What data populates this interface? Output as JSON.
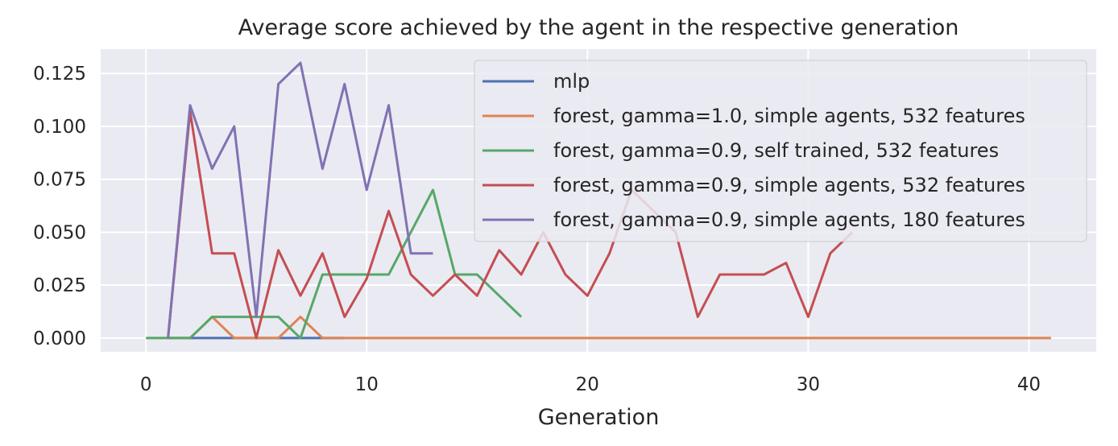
{
  "chart_data": {
    "type": "line",
    "title": "Average score achieved by the agent in the respective generation",
    "xlabel": "Generation",
    "ylabel": "",
    "xlim": [
      -2.05,
      43.05
    ],
    "ylim": [
      -0.0065,
      0.1365
    ],
    "xticks": [
      0,
      10,
      20,
      30,
      40
    ],
    "yticks": [
      0.0,
      0.025,
      0.05,
      0.075,
      0.1,
      0.125
    ],
    "xtick_labels": [
      "0",
      "10",
      "20",
      "30",
      "40"
    ],
    "ytick_labels": [
      "0.000",
      "0.025",
      "0.050",
      "0.075",
      "0.100",
      "0.125"
    ],
    "grid": true,
    "legend_position": "upper right",
    "background_color": "#eaeaf2",
    "series": [
      {
        "name": "mlp",
        "color": "#4c72b0",
        "x": [
          1,
          2,
          3,
          4,
          5,
          6,
          7,
          8,
          9
        ],
        "y": [
          0,
          0,
          0,
          0,
          0,
          0,
          0,
          0,
          0
        ]
      },
      {
        "name": "forest, gamma=1.0, simple agents, 532 features",
        "color": "#dd8452",
        "x": [
          1,
          2,
          3,
          4,
          5,
          6,
          7,
          8,
          9,
          10,
          11,
          12,
          13,
          14,
          15,
          16,
          17,
          18,
          19,
          20,
          21,
          22,
          23,
          24,
          25,
          26,
          27,
          28,
          29,
          30,
          31,
          32,
          33,
          34,
          35,
          36,
          37,
          38,
          39,
          40,
          41
        ],
        "y": [
          0,
          0,
          0.01,
          0,
          0,
          0,
          0.01,
          0,
          0,
          0,
          0,
          0,
          0,
          0,
          0,
          0,
          0,
          0,
          0,
          0,
          0,
          0,
          0,
          0,
          0,
          0,
          0,
          0,
          0,
          0,
          0,
          0,
          0,
          0,
          0,
          0,
          0,
          0,
          0,
          0,
          0
        ]
      },
      {
        "name": "forest, gamma=0.9, self trained, 532 features",
        "color": "#55a868",
        "x": [
          0,
          1,
          2,
          3,
          4,
          5,
          6,
          7,
          8,
          9,
          10,
          11,
          12,
          13,
          14,
          15,
          16,
          17
        ],
        "y": [
          0,
          0,
          0,
          0.01,
          0.01,
          0.01,
          0.01,
          0,
          0.03,
          0.03,
          0.03,
          0.03,
          0.05,
          0.07,
          0.03,
          0.03,
          0.02,
          0.01
        ]
      },
      {
        "name": "forest, gamma=0.9, simple agents, 532 features",
        "color": "#c44e52",
        "x": [
          1,
          2,
          3,
          4,
          5,
          6,
          7,
          8,
          9,
          10,
          11,
          12,
          13,
          14,
          15,
          16,
          17,
          18,
          19,
          20,
          21,
          22,
          23,
          24,
          25,
          26,
          27,
          28,
          29,
          30,
          31,
          32
        ],
        "y": [
          0,
          0.107,
          0.04,
          0.04,
          0,
          0.0415,
          0.02,
          0.04,
          0.01,
          0.028,
          0.06,
          0.03,
          0.02,
          0.03,
          0.02,
          0.0415,
          0.03,
          0.05,
          0.03,
          0.02,
          0.04,
          0.07,
          0.06,
          0.05,
          0.01,
          0.03,
          0.03,
          0.03,
          0.0355,
          0.01,
          0.04,
          0.05
        ]
      },
      {
        "name": "forest, gamma=0.9, simple agents, 180 features",
        "color": "#8172b3",
        "x": [
          1,
          2,
          3,
          4,
          5,
          6,
          7,
          8,
          9,
          10,
          11,
          12,
          13
        ],
        "y": [
          0,
          0.11,
          0.08,
          0.1,
          0.01,
          0.12,
          0.13,
          0.08,
          0.12,
          0.07,
          0.11,
          0.04,
          0.04
        ]
      }
    ]
  }
}
